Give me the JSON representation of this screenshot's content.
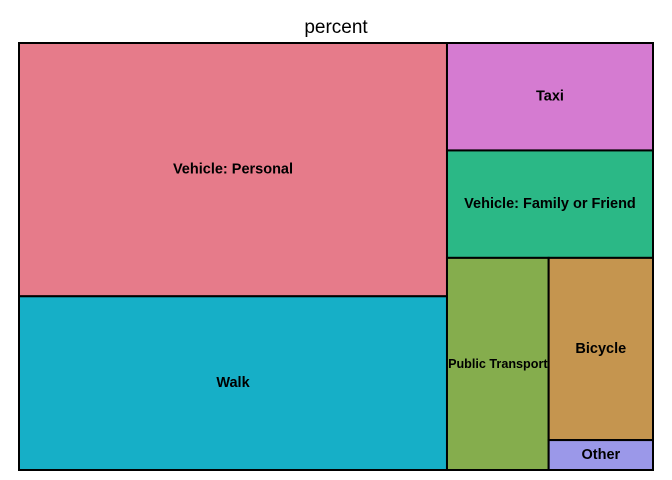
{
  "chart_data": {
    "type": "treemap",
    "title": "percent",
    "series": [
      {
        "name": "Vehicle: Personal",
        "value": 38.2,
        "color": "#E67B8A"
      },
      {
        "name": "Walk",
        "value": 26.2,
        "color": "#16AFC7"
      },
      {
        "name": "Taxi",
        "value": 7.8,
        "color": "#D57BD1"
      },
      {
        "name": "Vehicle: Family or Friend",
        "value": 7.8,
        "color": "#2BB886"
      },
      {
        "name": "Public Transport",
        "value": 7.6,
        "color": "#85AD4D"
      },
      {
        "name": "Bicycle",
        "value": 6.7,
        "color": "#C5954F"
      },
      {
        "name": "Other",
        "value": 1.1,
        "color": "#9B98E9"
      }
    ]
  }
}
